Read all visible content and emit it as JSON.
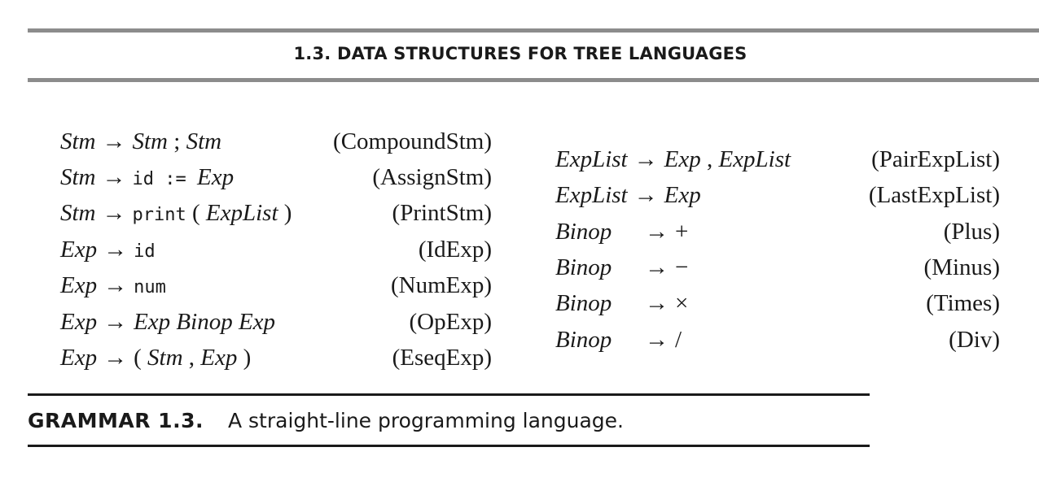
{
  "header": {
    "title": "1.3. DATA STRUCTURES FOR TREE LANGUAGES"
  },
  "grammar": {
    "arrow": "→",
    "left": [
      {
        "lhs": "Stm",
        "rhs": [
          {
            "t": "i",
            "v": "Stm"
          },
          {
            "t": "p",
            "v": " ; "
          },
          {
            "t": "i",
            "v": "Stm"
          }
        ],
        "label": "(CompoundStm)"
      },
      {
        "lhs": "Stm",
        "rhs": [
          {
            "t": "m",
            "v": "id := "
          },
          {
            "t": "i",
            "v": "Exp"
          }
        ],
        "label": "(AssignStm)"
      },
      {
        "lhs": "Stm",
        "rhs": [
          {
            "t": "m",
            "v": "print"
          },
          {
            "t": "p",
            "v": " ( "
          },
          {
            "t": "i",
            "v": "ExpList"
          },
          {
            "t": "p",
            "v": " )"
          }
        ],
        "label": "(PrintStm)"
      },
      {
        "lhs": "Exp",
        "rhs": [
          {
            "t": "m",
            "v": "id"
          }
        ],
        "label": "(IdExp)"
      },
      {
        "lhs": "Exp",
        "rhs": [
          {
            "t": "m",
            "v": "num"
          }
        ],
        "label": "(NumExp)"
      },
      {
        "lhs": "Exp",
        "rhs": [
          {
            "t": "i",
            "v": "Exp Binop Exp"
          }
        ],
        "label": "(OpExp)"
      },
      {
        "lhs": "Exp",
        "rhs": [
          {
            "t": "p",
            "v": "( "
          },
          {
            "t": "i",
            "v": "Stm"
          },
          {
            "t": "p",
            "v": " , "
          },
          {
            "t": "i",
            "v": "Exp"
          },
          {
            "t": "p",
            "v": " )"
          }
        ],
        "label": "(EseqExp)"
      }
    ],
    "right": [
      {
        "lhs": "ExpList",
        "rhs": [
          {
            "t": "i",
            "v": "Exp"
          },
          {
            "t": "p",
            "v": " , "
          },
          {
            "t": "i",
            "v": "ExpList"
          }
        ],
        "label": "(PairExpList)"
      },
      {
        "lhs": "ExpList",
        "rhs": [
          {
            "t": "i",
            "v": "Exp"
          }
        ],
        "label": "(LastExpList)"
      },
      {
        "lhs": "Binop",
        "rhs": [
          {
            "t": "p",
            "v": "+"
          }
        ],
        "label": "(Plus)"
      },
      {
        "lhs": "Binop",
        "rhs": [
          {
            "t": "p",
            "v": "−"
          }
        ],
        "label": "(Minus)"
      },
      {
        "lhs": "Binop",
        "rhs": [
          {
            "t": "p",
            "v": "×"
          }
        ],
        "label": "(Times)"
      },
      {
        "lhs": "Binop",
        "rhs": [
          {
            "t": "p",
            "v": "/"
          }
        ],
        "label": "(Div)"
      }
    ]
  },
  "caption": {
    "label": "GRAMMAR 1.3.",
    "text": "A straight-line programming language."
  }
}
